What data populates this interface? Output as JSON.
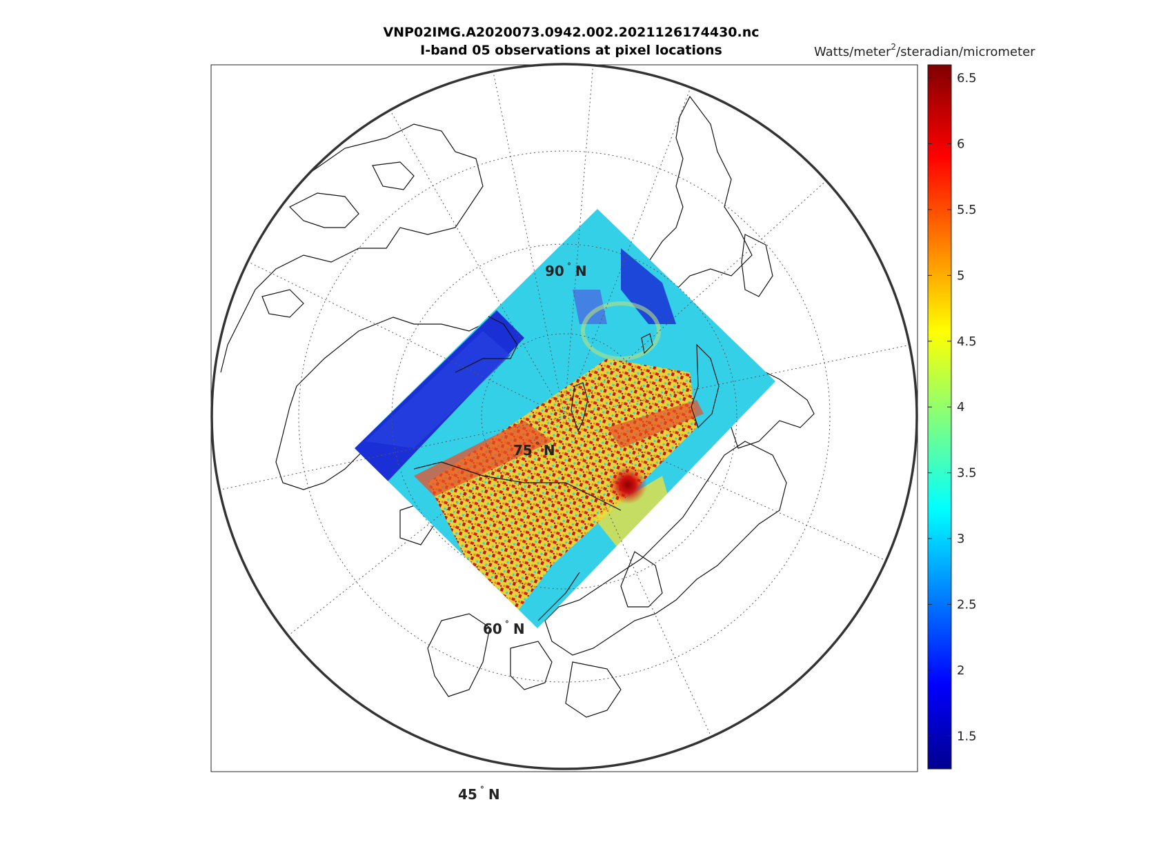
{
  "title_line1": "VNP02IMG.A2020073.0942.002.2021126174430.nc",
  "title_line2": "I-band 05 observations at pixel locations",
  "colorbar": {
    "units_prefix": "Watts/meter",
    "units_power": "2",
    "units_suffix": "/steradian/micrometer",
    "min": 1.25,
    "max": 6.6,
    "ticks": [
      "1.5",
      "2",
      "2.5",
      "3",
      "3.5",
      "4",
      "4.5",
      "5",
      "5.5",
      "6",
      "6.5"
    ],
    "tick_values": [
      1.5,
      2,
      2.5,
      3,
      3.5,
      4,
      4.5,
      5,
      5.5,
      6,
      6.5
    ],
    "colormap": "jet"
  },
  "map": {
    "projection": "polar-stereographic-north",
    "graticule": "dotted",
    "latitude_labels": [
      {
        "text": "90° N",
        "deg": "90",
        "unit": "N"
      },
      {
        "text": "75° N",
        "deg": "75",
        "unit": "N"
      },
      {
        "text": "60° N",
        "deg": "60",
        "unit": "N"
      },
      {
        "text": "45° N",
        "deg": "45",
        "unit": "N"
      }
    ]
  },
  "swath": {
    "shape": "rotated-rectangle",
    "colors": {
      "low": "#1a2fd6",
      "mid": "#34d0e8",
      "mid_high": "#e8e040",
      "high": "#e82a10",
      "peak": "#8a0000"
    }
  }
}
